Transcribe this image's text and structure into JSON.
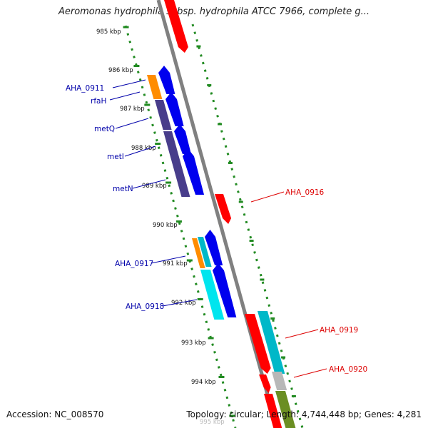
{
  "title": "Aeromonas hydrophila subsp. hydrophila ATCC 7966, complete g...",
  "footer": {
    "accession": "Accession: NC_008570",
    "topology": "Topology: circular; Length: 4,744,448 bp; Genes: 4,281"
  },
  "colors": {
    "backbone": "#808080",
    "tick": "#228b22",
    "label_left": "#0000aa",
    "label_right": "#dd0000",
    "gene_blue": "#0000ee",
    "gene_navy": "#483d8b",
    "gene_orange": "#ff8c00",
    "gene_cyan": "#00e5ee",
    "gene_teal": "#00b8c8",
    "gene_red": "#ff0000",
    "gene_gray": "#b8b8b8",
    "gene_olive": "#6b8e23"
  },
  "ruler": [
    "985 kbp",
    "986 kbp",
    "987 kbp",
    "988 kbp",
    "989 kbp",
    "990 kbp",
    "991 kbp",
    "992 kbp",
    "993 kbp",
    "994 kbp",
    "995 kbp"
  ],
  "genes_left": [
    {
      "label": "AHA_0911"
    },
    {
      "label": "rfaH"
    },
    {
      "label": "metQ"
    },
    {
      "label": "metI"
    },
    {
      "label": "metN"
    },
    {
      "label": "AHA_0917"
    },
    {
      "label": "AHA_0918"
    }
  ],
  "genes_right": [
    {
      "label": "AHA_0916"
    },
    {
      "label": "AHA_0919"
    },
    {
      "label": "AHA_0920"
    }
  ]
}
